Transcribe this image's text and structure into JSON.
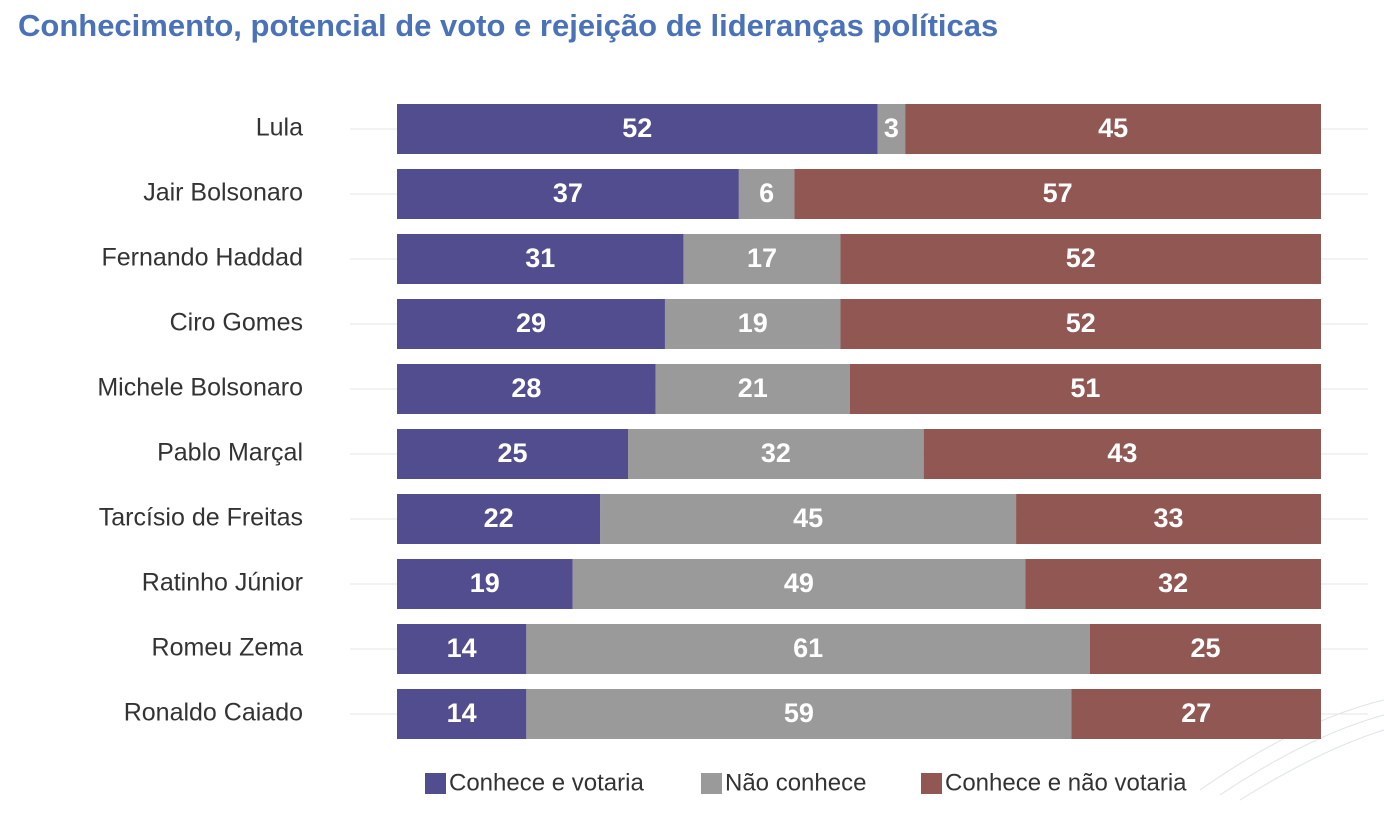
{
  "chart_data": {
    "type": "stacked-bar-horizontal",
    "title": "Conhecimento, potencial de voto e rejeição de lideranças políticas",
    "categories": [
      "Lula",
      "Jair Bolsonaro",
      "Fernando Haddad",
      "Ciro Gomes",
      "Michele Bolsonaro",
      "Pablo Marçal",
      "Tarcísio de Freitas",
      "Ratinho Júnior",
      "Romeu Zema",
      "Ronaldo Caiado"
    ],
    "series": [
      {
        "name": "Conhece e votaria",
        "color": "#524d8e",
        "values": [
          52,
          37,
          31,
          29,
          28,
          25,
          22,
          19,
          14,
          14
        ]
      },
      {
        "name": "Não conhece",
        "color": "#9a9a9a",
        "values": [
          3,
          6,
          17,
          19,
          21,
          32,
          45,
          49,
          61,
          59
        ]
      },
      {
        "name": "Conhece e não votaria",
        "color": "#905753",
        "values": [
          45,
          57,
          52,
          52,
          51,
          43,
          33,
          32,
          25,
          27
        ]
      }
    ],
    "xlim": [
      0,
      100
    ],
    "legend": "bottom"
  }
}
